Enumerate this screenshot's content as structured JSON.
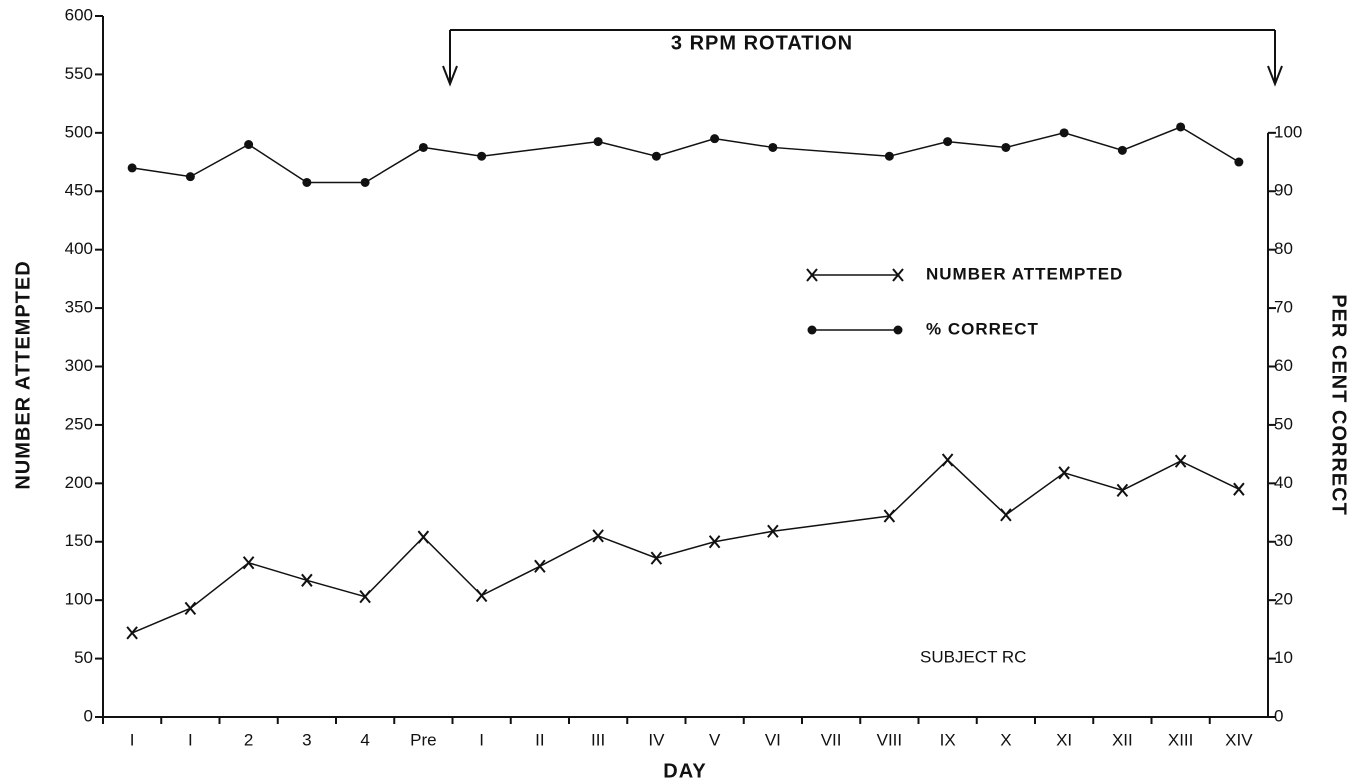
{
  "chart_data": {
    "type": "line",
    "annotations": [
      "3 RPM ROTATION",
      "SUBJECT RC"
    ],
    "xlabel": "DAY",
    "ylabel": "NUMBER ATTEMPTED",
    "y2label": "PER CENT CORRECT",
    "categories": [
      "I",
      "I",
      "2",
      "3",
      "4",
      "Pre",
      "I",
      "II",
      "III",
      "IV",
      "V",
      "VI",
      "VII",
      "VIII",
      "IX",
      "X",
      "XI",
      "XII",
      "XIII",
      "XIV"
    ],
    "series": [
      {
        "name": "NUMBER ATTEMPTED",
        "color": "#111111",
        "marker": "x",
        "values": [
          72,
          93,
          132,
          117,
          103,
          154,
          104,
          129,
          155,
          136,
          150,
          159,
          null,
          172,
          220,
          173,
          209,
          194,
          219,
          195
        ]
      },
      {
        "name": "% CORRECT",
        "color": "#111111",
        "marker": "o",
        "axis": "y2",
        "values": [
          94,
          92.5,
          98,
          91.5,
          91.5,
          97.5,
          96,
          null,
          98.5,
          96,
          99,
          97.5,
          null,
          96,
          98.5,
          97.5,
          100,
          97,
          101,
          95
        ]
      }
    ],
    "connect_gaps": true,
    "ylim": [
      0,
      600
    ],
    "yticks": [
      0,
      50,
      100,
      150,
      200,
      250,
      300,
      350,
      400,
      450,
      500,
      550,
      600
    ],
    "y2lim": [
      0,
      120
    ],
    "y2ticks": [
      0,
      10,
      20,
      30,
      40,
      50,
      60,
      70,
      80,
      90,
      100
    ]
  }
}
